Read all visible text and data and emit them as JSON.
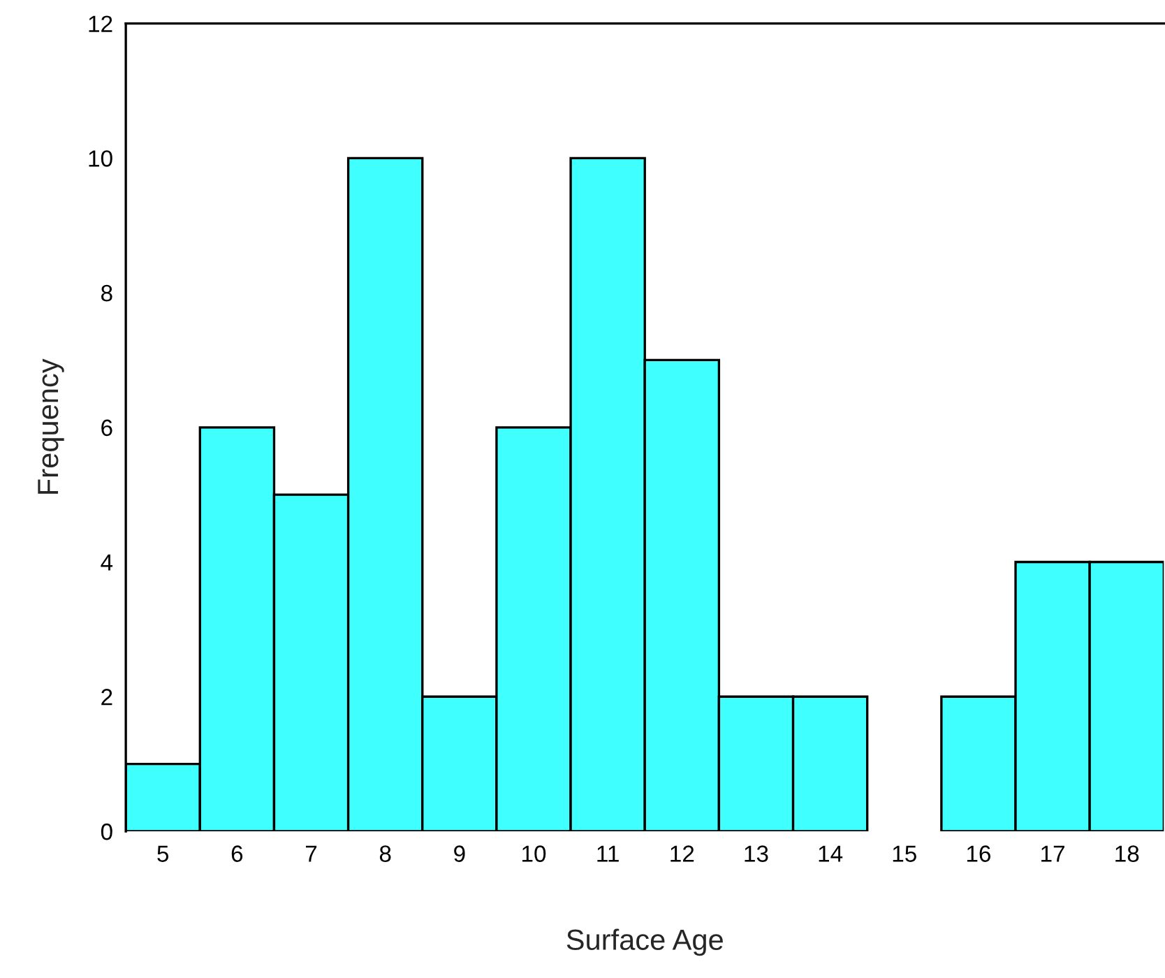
{
  "chart_data": {
    "type": "histogram",
    "xlabel": "Surface Age",
    "ylabel": "Frequency",
    "bins": [
      4.5,
      5.5,
      6.5,
      7.5,
      8.5,
      9.5,
      10.5,
      11.5,
      12.5,
      13.5,
      14.5,
      15.5,
      16.5,
      17.5,
      18.5
    ],
    "values": [
      1,
      6,
      5,
      10,
      2,
      6,
      10,
      7,
      2,
      2,
      0,
      2,
      4,
      4
    ],
    "color": "#40ffff",
    "xlim": [
      4.5,
      18.5
    ],
    "xticks": [
      5,
      6,
      7,
      8,
      9,
      10,
      11,
      12,
      13,
      14,
      15,
      16,
      17,
      18
    ],
    "ylim": [
      0,
      12
    ],
    "yticks": [
      0,
      2,
      4,
      6,
      8,
      10,
      12
    ],
    "grid": false
  }
}
